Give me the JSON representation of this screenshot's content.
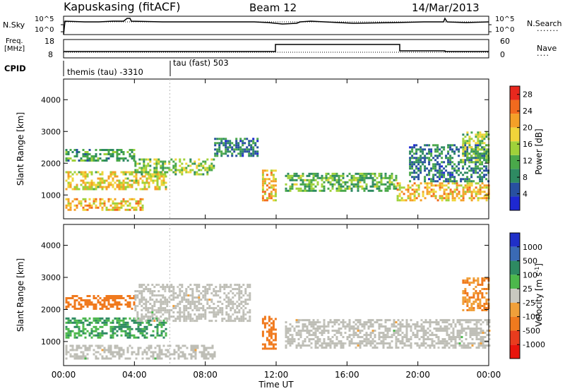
{
  "header": {
    "station": "Kapuskasing (fitACF)",
    "beam": "Beam 12",
    "date": "14/Mar/2013"
  },
  "top_panels": {
    "noise": {
      "left_label": "N.Sky",
      "left_ticks": [
        "10^5",
        "10^0"
      ],
      "right_ticks": [
        "10^5",
        "10^0"
      ],
      "right_label": "N.Search"
    },
    "freq": {
      "left_label_1": "Freq.",
      "left_label_2": "[MHz]",
      "left_ticks": [
        "18",
        "8"
      ],
      "right_ticks": [
        "60",
        "0"
      ],
      "right_label": "Nave"
    },
    "cpid": {
      "label": "CPID",
      "segments": [
        {
          "text": "themis (tau) -3310",
          "start_h": 0
        },
        {
          "text": "tau (fast) 503",
          "start_h": 6
        }
      ]
    }
  },
  "colors": {
    "power_scale": [
      "#1e28d2",
      "#2850a0",
      "#2e8a62",
      "#4aa84a",
      "#9fd13a",
      "#f0d43a",
      "#f4a028",
      "#f26a1e",
      "#e8281e"
    ],
    "velocity_scale": [
      "#2030c8",
      "#3a6ab4",
      "#2e8a62",
      "#4cb84c",
      "#c8c8c0",
      "#f0a03a",
      "#f07a1e",
      "#e83c1e",
      "#e8140c"
    ],
    "ground_scatter": "#bebeb6"
  },
  "chart_data": [
    {
      "type": "heatmap",
      "name": "power",
      "ylabel": "Slant Range [km]",
      "yticks": [
        1000,
        2000,
        3000,
        4000
      ],
      "ylim": [
        250,
        4650
      ],
      "xlim": [
        0,
        24
      ],
      "xticks": [
        "00:00",
        "04:00",
        "08:00",
        "12:00",
        "16:00",
        "20:00",
        "00:00"
      ],
      "colorbar": {
        "label": "Power [dB]",
        "ticks": [
          "4",
          "8",
          "12",
          "16",
          "20",
          "24",
          "28"
        ],
        "range": [
          0,
          30
        ]
      },
      "regions": [
        {
          "x": [
            0.1,
            4.0
          ],
          "y": [
            2050,
            2450
          ],
          "value": 10
        },
        {
          "x": [
            0.1,
            5.8
          ],
          "y": [
            1150,
            1750
          ],
          "value": 18
        },
        {
          "x": [
            0.1,
            4.5
          ],
          "y": [
            500,
            900
          ],
          "value": 20
        },
        {
          "x": [
            4.0,
            8.5
          ],
          "y": [
            1650,
            2150
          ],
          "value": 14
        },
        {
          "x": [
            8.5,
            11.0
          ],
          "y": [
            2200,
            2800
          ],
          "value": 8
        },
        {
          "x": [
            11.2,
            12.0
          ],
          "y": [
            800,
            1800
          ],
          "value": 20
        },
        {
          "x": [
            12.5,
            18.8
          ],
          "y": [
            1100,
            1700
          ],
          "value": 12
        },
        {
          "x": [
            18.8,
            24.0
          ],
          "y": [
            800,
            1400
          ],
          "value": 20
        },
        {
          "x": [
            19.5,
            24.0
          ],
          "y": [
            1400,
            2600
          ],
          "value": 8
        },
        {
          "x": [
            22.5,
            24.0
          ],
          "y": [
            2000,
            3000
          ],
          "value": 14
        }
      ]
    },
    {
      "type": "heatmap",
      "name": "velocity",
      "ylabel": "Slant Range [km]",
      "yticks": [
        1000,
        2000,
        3000,
        4000
      ],
      "ylim": [
        250,
        4650
      ],
      "xlim": [
        0,
        24
      ],
      "xticks": [
        "00:00",
        "04:00",
        "08:00",
        "12:00",
        "16:00",
        "20:00",
        "00:00"
      ],
      "xlabel": "Time UT",
      "colorbar": {
        "label": "Velocity [m s^-1]",
        "ticks": [
          "1000",
          "500",
          "100",
          "25",
          "-25",
          "-100",
          "-500",
          "-1000"
        ]
      },
      "regions": [
        {
          "x": [
            0.1,
            4.0
          ],
          "y": [
            2050,
            2450
          ],
          "value": -300
        },
        {
          "x": [
            0.1,
            5.8
          ],
          "y": [
            1150,
            1750
          ],
          "value": 100
        },
        {
          "x": [
            0.1,
            8.5
          ],
          "y": [
            500,
            900
          ],
          "value": 0
        },
        {
          "x": [
            4.0,
            10.5
          ],
          "y": [
            1650,
            2800
          ],
          "value": 0
        },
        {
          "x": [
            11.2,
            12.0
          ],
          "y": [
            800,
            1800
          ],
          "value": -200
        },
        {
          "x": [
            12.5,
            24.0
          ],
          "y": [
            800,
            1700
          ],
          "value": 0
        },
        {
          "x": [
            22.5,
            24.0
          ],
          "y": [
            2000,
            3000
          ],
          "value": -100
        }
      ]
    }
  ]
}
